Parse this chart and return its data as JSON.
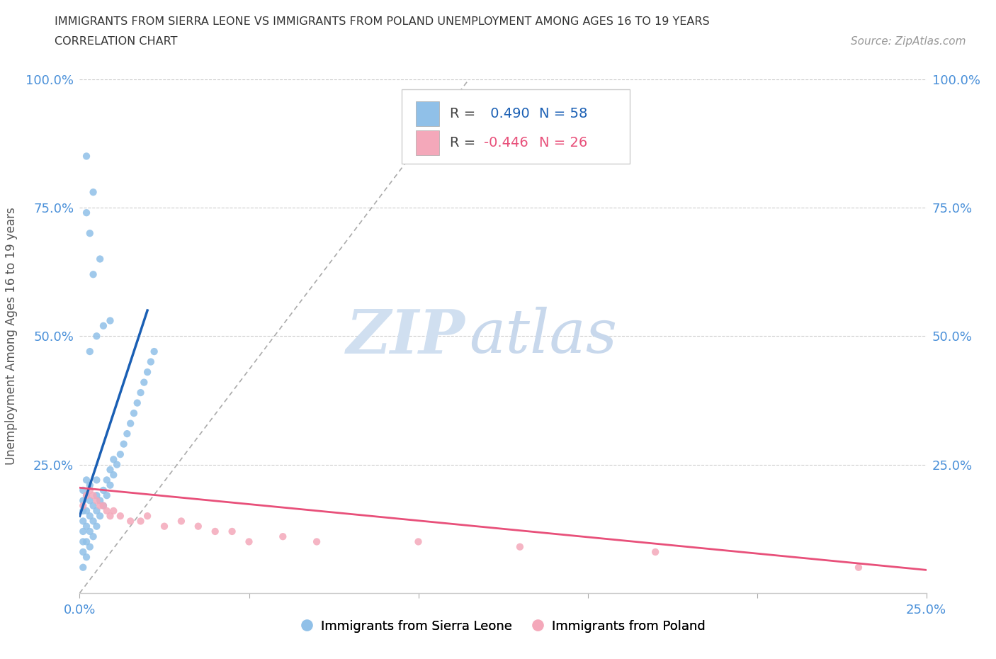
{
  "title_line1": "IMMIGRANTS FROM SIERRA LEONE VS IMMIGRANTS FROM POLAND UNEMPLOYMENT AMONG AGES 16 TO 19 YEARS",
  "title_line2": "CORRELATION CHART",
  "source_text": "Source: ZipAtlas.com",
  "ylabel": "Unemployment Among Ages 16 to 19 years",
  "xmin": 0.0,
  "xmax": 0.25,
  "ymin": 0.0,
  "ymax": 1.0,
  "ytick_positions": [
    0.25,
    0.5,
    0.75,
    1.0
  ],
  "ytick_labels": [
    "25.0%",
    "50.0%",
    "75.0%",
    "100.0%"
  ],
  "xtick_labels": [
    "0.0%",
    "25.0%"
  ],
  "watermark_zip": "ZIP",
  "watermark_atlas": "atlas",
  "blue_color": "#90c0e8",
  "pink_color": "#f4a8ba",
  "blue_line_color": "#1a5fb4",
  "pink_line_color": "#e8507a",
  "legend_R1": "0.490",
  "legend_N1": "58",
  "legend_R2": "-0.446",
  "legend_N2": "26",
  "legend_label1": "Immigrants from Sierra Leone",
  "legend_label2": "Immigrants from Poland",
  "blue_x": [
    0.001,
    0.001,
    0.001,
    0.001,
    0.001,
    0.001,
    0.001,
    0.001,
    0.002,
    0.002,
    0.002,
    0.002,
    0.002,
    0.002,
    0.003,
    0.003,
    0.003,
    0.003,
    0.003,
    0.004,
    0.004,
    0.004,
    0.005,
    0.005,
    0.005,
    0.005,
    0.006,
    0.006,
    0.007,
    0.007,
    0.008,
    0.008,
    0.009,
    0.009,
    0.01,
    0.01,
    0.011,
    0.012,
    0.013,
    0.014,
    0.015,
    0.016,
    0.017,
    0.018,
    0.019,
    0.02,
    0.021,
    0.022,
    0.003,
    0.005,
    0.007,
    0.009,
    0.004,
    0.006,
    0.003,
    0.002,
    0.004,
    0.002
  ],
  "blue_y": [
    0.05,
    0.08,
    0.1,
    0.12,
    0.14,
    0.16,
    0.18,
    0.2,
    0.07,
    0.1,
    0.13,
    0.16,
    0.19,
    0.22,
    0.09,
    0.12,
    0.15,
    0.18,
    0.21,
    0.11,
    0.14,
    0.17,
    0.13,
    0.16,
    0.19,
    0.22,
    0.15,
    0.18,
    0.17,
    0.2,
    0.19,
    0.22,
    0.21,
    0.24,
    0.23,
    0.26,
    0.25,
    0.27,
    0.29,
    0.31,
    0.33,
    0.35,
    0.37,
    0.39,
    0.41,
    0.43,
    0.45,
    0.47,
    0.47,
    0.5,
    0.52,
    0.53,
    0.62,
    0.65,
    0.7,
    0.74,
    0.78,
    0.85
  ],
  "pink_x": [
    0.001,
    0.002,
    0.003,
    0.004,
    0.005,
    0.006,
    0.007,
    0.008,
    0.009,
    0.01,
    0.012,
    0.015,
    0.018,
    0.02,
    0.025,
    0.03,
    0.035,
    0.04,
    0.045,
    0.05,
    0.06,
    0.07,
    0.1,
    0.13,
    0.17,
    0.23
  ],
  "pink_y": [
    0.17,
    0.19,
    0.2,
    0.19,
    0.18,
    0.17,
    0.17,
    0.16,
    0.15,
    0.16,
    0.15,
    0.14,
    0.14,
    0.15,
    0.13,
    0.14,
    0.13,
    0.12,
    0.12,
    0.1,
    0.11,
    0.1,
    0.1,
    0.09,
    0.08,
    0.05
  ],
  "blue_line_x": [
    0.0,
    0.02
  ],
  "blue_line_y": [
    0.15,
    0.55
  ],
  "pink_line_x": [
    0.0,
    0.25
  ],
  "pink_line_y": [
    0.205,
    0.045
  ],
  "dash_line_x": [
    0.0,
    0.115
  ],
  "dash_line_y": [
    0.0,
    1.0
  ]
}
